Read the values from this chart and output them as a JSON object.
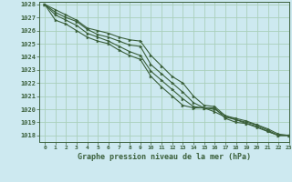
{
  "background_color": "#cde9f0",
  "grid_color": "#aacfbb",
  "line_color": "#3a5f3a",
  "text_color": "#3a5f3a",
  "xlabel": "Graphe pression niveau de la mer (hPa)",
  "xlim": [
    -0.5,
    23
  ],
  "ylim": [
    1017.5,
    1028.2
  ],
  "xticks": [
    0,
    1,
    2,
    3,
    4,
    5,
    6,
    7,
    8,
    9,
    10,
    11,
    12,
    13,
    14,
    15,
    16,
    17,
    18,
    19,
    20,
    21,
    22,
    23
  ],
  "yticks": [
    1018,
    1019,
    1020,
    1021,
    1022,
    1023,
    1024,
    1025,
    1026,
    1027,
    1028
  ],
  "series": [
    [
      1028.0,
      1027.6,
      1027.2,
      1026.8,
      1026.2,
      1026.0,
      1025.8,
      1025.5,
      1025.3,
      1025.2,
      1024.1,
      1023.3,
      1022.5,
      1022.0,
      1021.0,
      1020.3,
      1020.2,
      1019.5,
      1019.3,
      1019.1,
      1018.8,
      1018.5,
      1018.1,
      1018.0
    ],
    [
      1028.0,
      1027.4,
      1027.0,
      1026.7,
      1026.1,
      1025.7,
      1025.5,
      1025.2,
      1024.9,
      1024.8,
      1023.4,
      1022.7,
      1022.0,
      1021.3,
      1020.5,
      1020.1,
      1019.8,
      1019.4,
      1019.2,
      1018.9,
      1018.6,
      1018.3,
      1018.0,
      1018.0
    ],
    [
      1028.0,
      1027.2,
      1026.8,
      1026.4,
      1025.8,
      1025.5,
      1025.2,
      1024.8,
      1024.4,
      1024.1,
      1022.9,
      1022.2,
      1021.5,
      1020.8,
      1020.2,
      1020.1,
      1020.0,
      1019.5,
      1019.2,
      1019.0,
      1018.8,
      1018.4,
      1018.0,
      1018.0
    ],
    [
      1028.0,
      1026.8,
      1026.5,
      1026.0,
      1025.5,
      1025.2,
      1025.0,
      1024.5,
      1024.1,
      1023.8,
      1022.5,
      1021.7,
      1021.0,
      1020.3,
      1020.1,
      1020.1,
      1020.1,
      1019.3,
      1019.0,
      1018.9,
      1018.7,
      1018.3,
      1018.0,
      1018.0
    ]
  ]
}
